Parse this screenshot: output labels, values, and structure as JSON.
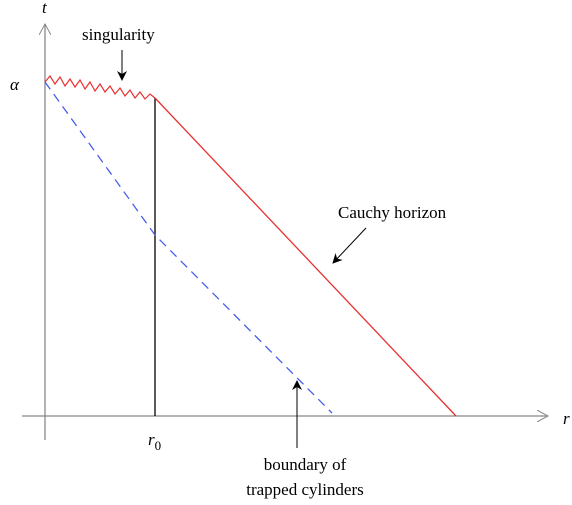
{
  "axes": {
    "vertical": "t",
    "horizontal": "r"
  },
  "labels": {
    "alpha": "α",
    "r0": {
      "base": "r",
      "sub": "0"
    }
  },
  "annotations": {
    "singularity": "singularity",
    "cauchy_horizon": "Cauchy horizon",
    "boundary": [
      "boundary of",
      "trapped cylinders"
    ]
  }
}
